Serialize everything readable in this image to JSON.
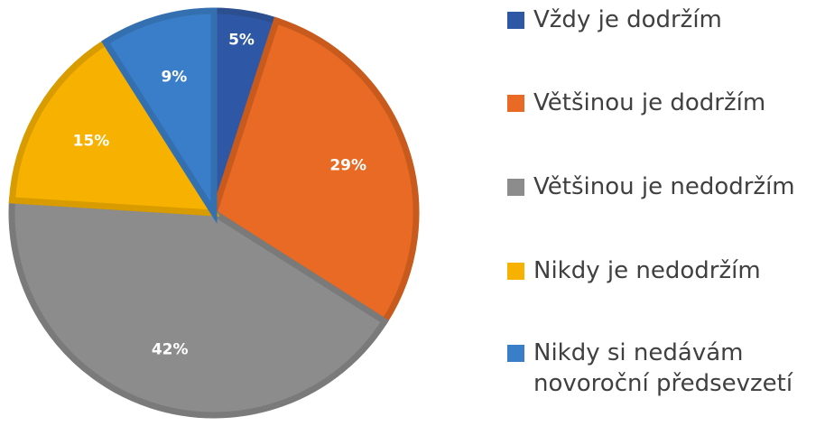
{
  "chart_data": {
    "type": "pie",
    "categories": [
      "Vždy je dodržím",
      "Většinou je dodržím",
      "Většinou je nedodržím",
      "Nikdy je nedodržím",
      "Nikdy si nedávám novoroční předsevzetí"
    ],
    "values": [
      5,
      29,
      42,
      15,
      9
    ],
    "data_labels": [
      "5%",
      "29%",
      "42%",
      "15%",
      "9%"
    ],
    "colors": [
      "#2E58A6",
      "#E86A24",
      "#8C8C8C",
      "#F7B100",
      "#3A7DC8"
    ],
    "border_colors": [
      "#2B4F8F",
      "#C85A1E",
      "#7A7A7A",
      "#D89C00",
      "#3470B0"
    ],
    "legend_placement": "right",
    "title": ""
  }
}
